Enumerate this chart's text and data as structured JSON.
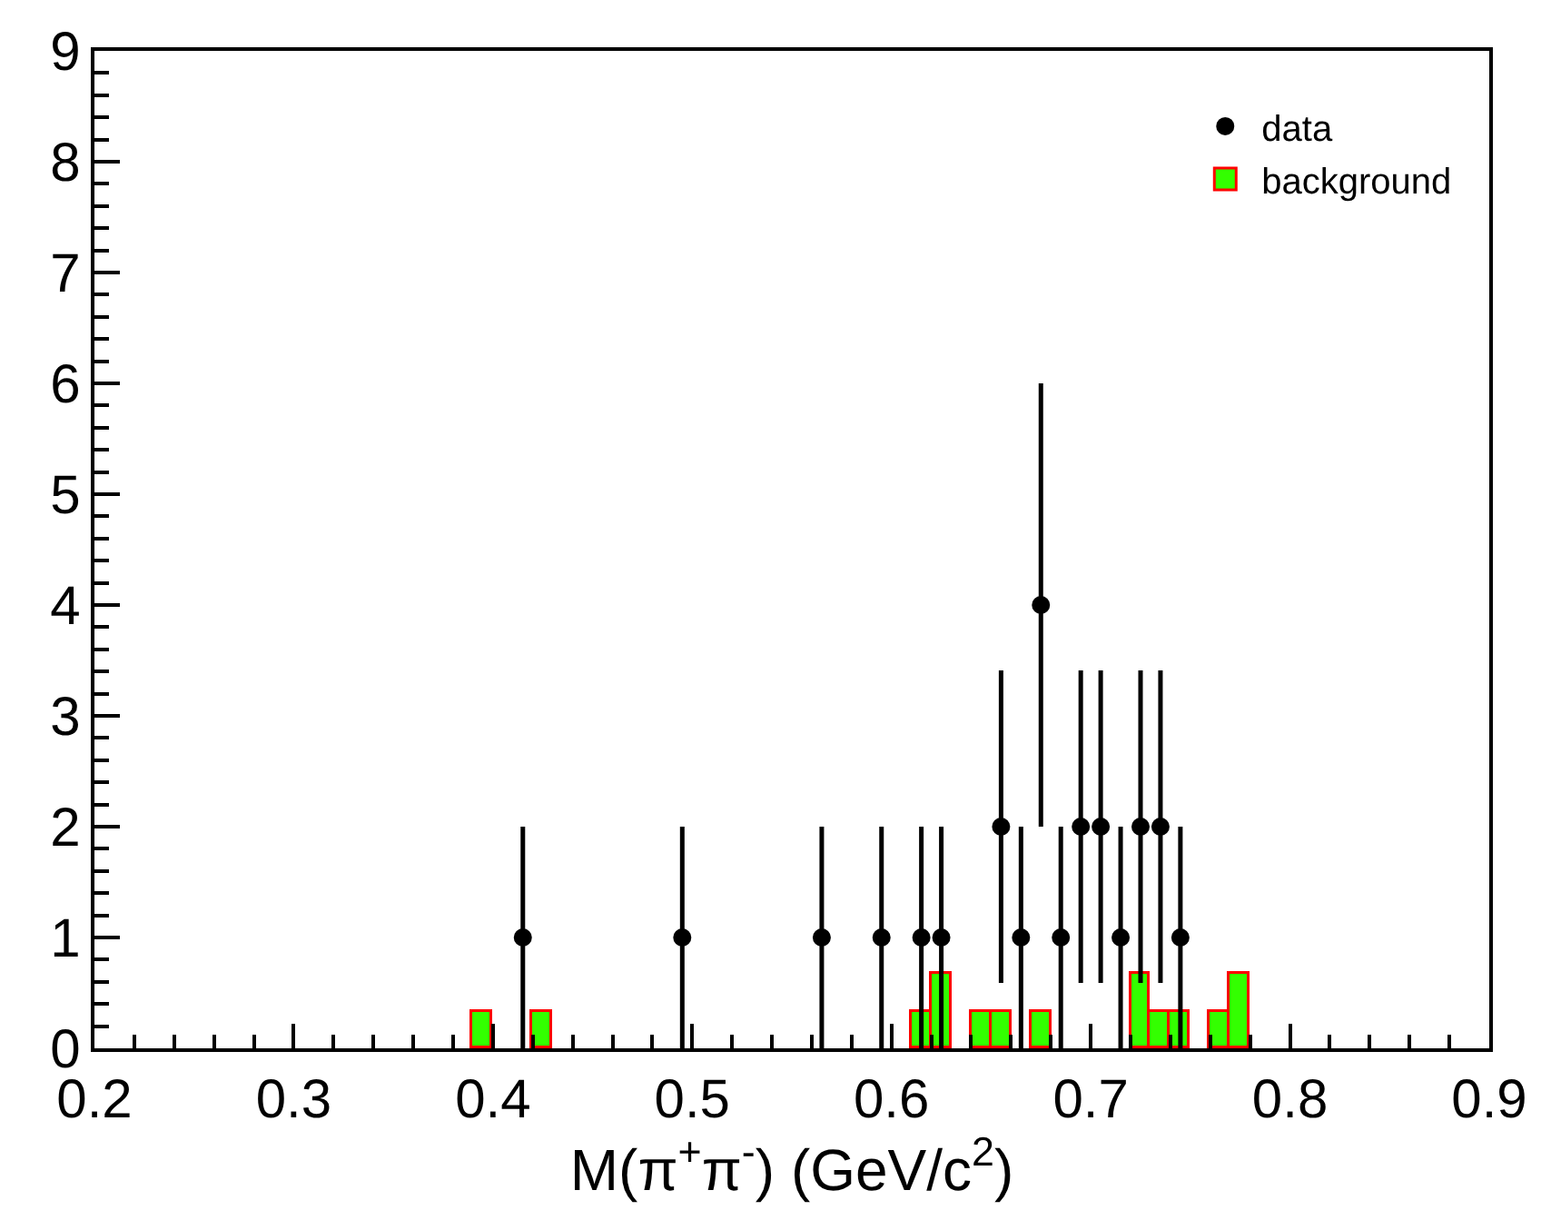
{
  "chart_data": {
    "type": "scatter",
    "xlabel": "M(π$^{+}$π$^{-}$) (GeV/c$^{2}$)",
    "xlim": [
      0.2,
      0.9
    ],
    "xticks": [
      0.2,
      0.3,
      0.4,
      0.5,
      0.6,
      0.7,
      0.8,
      0.9
    ],
    "ylim": [
      0,
      9
    ],
    "yticks": [
      0,
      1,
      2,
      3,
      4,
      5,
      6,
      7,
      8,
      9
    ],
    "legend": "top right",
    "marker": "circle",
    "series": [
      {
        "name": "data",
        "color": "#000000",
        "x": [
          0.415,
          0.495,
          0.565,
          0.595,
          0.615,
          0.625,
          0.655,
          0.665,
          0.675,
          0.685,
          0.695,
          0.705,
          0.715,
          0.725,
          0.735,
          0.745
        ],
        "values": [
          1,
          1,
          1,
          1,
          1,
          1,
          2,
          1,
          4,
          1,
          2,
          2,
          1,
          2,
          2,
          1
        ],
        "errors": [
          1,
          1,
          1,
          1,
          1,
          1,
          1.41,
          1,
          2,
          1,
          1.41,
          1.41,
          1,
          1.41,
          1.41,
          1
        ]
      },
      {
        "name": "background",
        "type": "histogram",
        "color": "#33ff00",
        "bins": [
          0.39,
          0.4,
          0.41,
          0.42,
          0.43,
          0.44,
          0.45,
          0.46,
          0.47,
          0.48,
          0.49,
          0.5,
          0.51,
          0.52,
          0.53,
          0.54,
          0.55,
          0.56,
          0.57,
          0.58,
          0.59,
          0.6,
          0.61,
          0.62,
          0.63,
          0.64,
          0.65,
          0.66,
          0.67,
          0.68,
          0.69,
          0.7,
          0.71,
          0.72,
          0.73,
          0.74,
          0.75,
          0.76,
          0.77,
          0.78
        ],
        "values": [
          0.33,
          0,
          0,
          0.33,
          0,
          0,
          0,
          0,
          0,
          0,
          0,
          0,
          0,
          0,
          0,
          0,
          0,
          0,
          0,
          0,
          0,
          0,
          0.33,
          0.67,
          0,
          0.33,
          0.33,
          0,
          0.33,
          0,
          0,
          0,
          0,
          0.67,
          0.33,
          0.33,
          0,
          0.33,
          0.67
        ]
      }
    ]
  }
}
